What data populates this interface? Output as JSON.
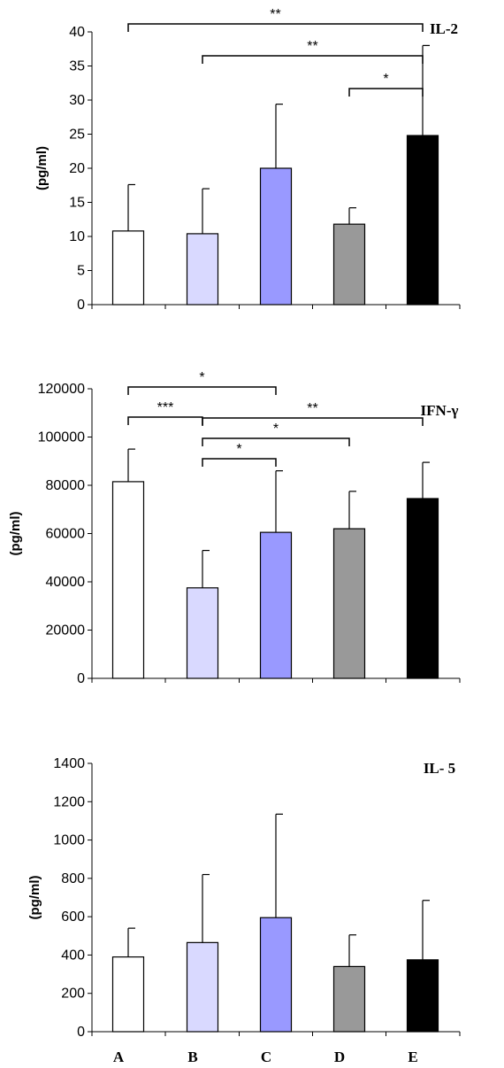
{
  "chart_data": [
    {
      "type": "bar",
      "title": "IL-2",
      "ylabel": "(pg/ml)",
      "categories": [
        "A",
        "B",
        "C",
        "D",
        "E"
      ],
      "values": [
        10.8,
        10.4,
        20.0,
        11.8,
        24.8
      ],
      "error_upper": [
        17.6,
        17.0,
        29.4,
        14.2,
        38.0
      ],
      "colors": [
        "#ffffff",
        "#d9d9ff",
        "#9999ff",
        "#999999",
        "#000000"
      ],
      "ylim": [
        0,
        40
      ],
      "yticks": [
        0,
        5,
        10,
        15,
        20,
        25,
        30,
        35,
        40
      ],
      "yticklabels": [
        "0",
        "5",
        "10",
        "15",
        "20",
        "25",
        "30",
        "35",
        "40"
      ],
      "grid": false,
      "significance": [
        {
          "from": "A",
          "to": "E",
          "label": "**"
        },
        {
          "from": "B",
          "to": "E",
          "label": "**"
        },
        {
          "from": "D",
          "to": "E",
          "label": "*"
        }
      ]
    },
    {
      "type": "bar",
      "title": "IFN-γ",
      "ylabel": "(pg/ml)",
      "categories": [
        "A",
        "B",
        "C",
        "D",
        "E"
      ],
      "values": [
        81500,
        37500,
        60500,
        62000,
        74500
      ],
      "error_upper": [
        95000,
        53000,
        86000,
        77500,
        89500
      ],
      "colors": [
        "#ffffff",
        "#d9d9ff",
        "#9999ff",
        "#999999",
        "#000000"
      ],
      "ylim": [
        0,
        120000
      ],
      "yticks": [
        0,
        20000,
        40000,
        60000,
        80000,
        100000,
        120000
      ],
      "yticklabels": [
        "0",
        "20000",
        "40000",
        "60000",
        "80000",
        "100000",
        "120000"
      ],
      "grid": false,
      "significance": [
        {
          "from": "A",
          "to": "C",
          "label": "*"
        },
        {
          "from": "A",
          "to": "B",
          "label": "***"
        },
        {
          "from": "B",
          "to": "E",
          "label": "**"
        },
        {
          "from": "B",
          "to": "D",
          "label": "*"
        },
        {
          "from": "B",
          "to": "C",
          "label": "*"
        }
      ]
    },
    {
      "type": "bar",
      "title": "IL- 5",
      "ylabel": "(pg/ml)",
      "categories": [
        "A",
        "B",
        "C",
        "D",
        "E"
      ],
      "values": [
        390,
        465,
        595,
        340,
        375
      ],
      "error_upper": [
        540,
        820,
        1135,
        505,
        685
      ],
      "colors": [
        "#ffffff",
        "#d9d9ff",
        "#9999ff",
        "#999999",
        "#000000"
      ],
      "ylim": [
        0,
        1400
      ],
      "yticks": [
        0,
        200,
        400,
        600,
        800,
        1000,
        1200,
        1400
      ],
      "yticklabels": [
        "0",
        "200",
        "400",
        "600",
        "800",
        "1000",
        "1200",
        "1400"
      ],
      "grid": false,
      "significance": []
    }
  ]
}
